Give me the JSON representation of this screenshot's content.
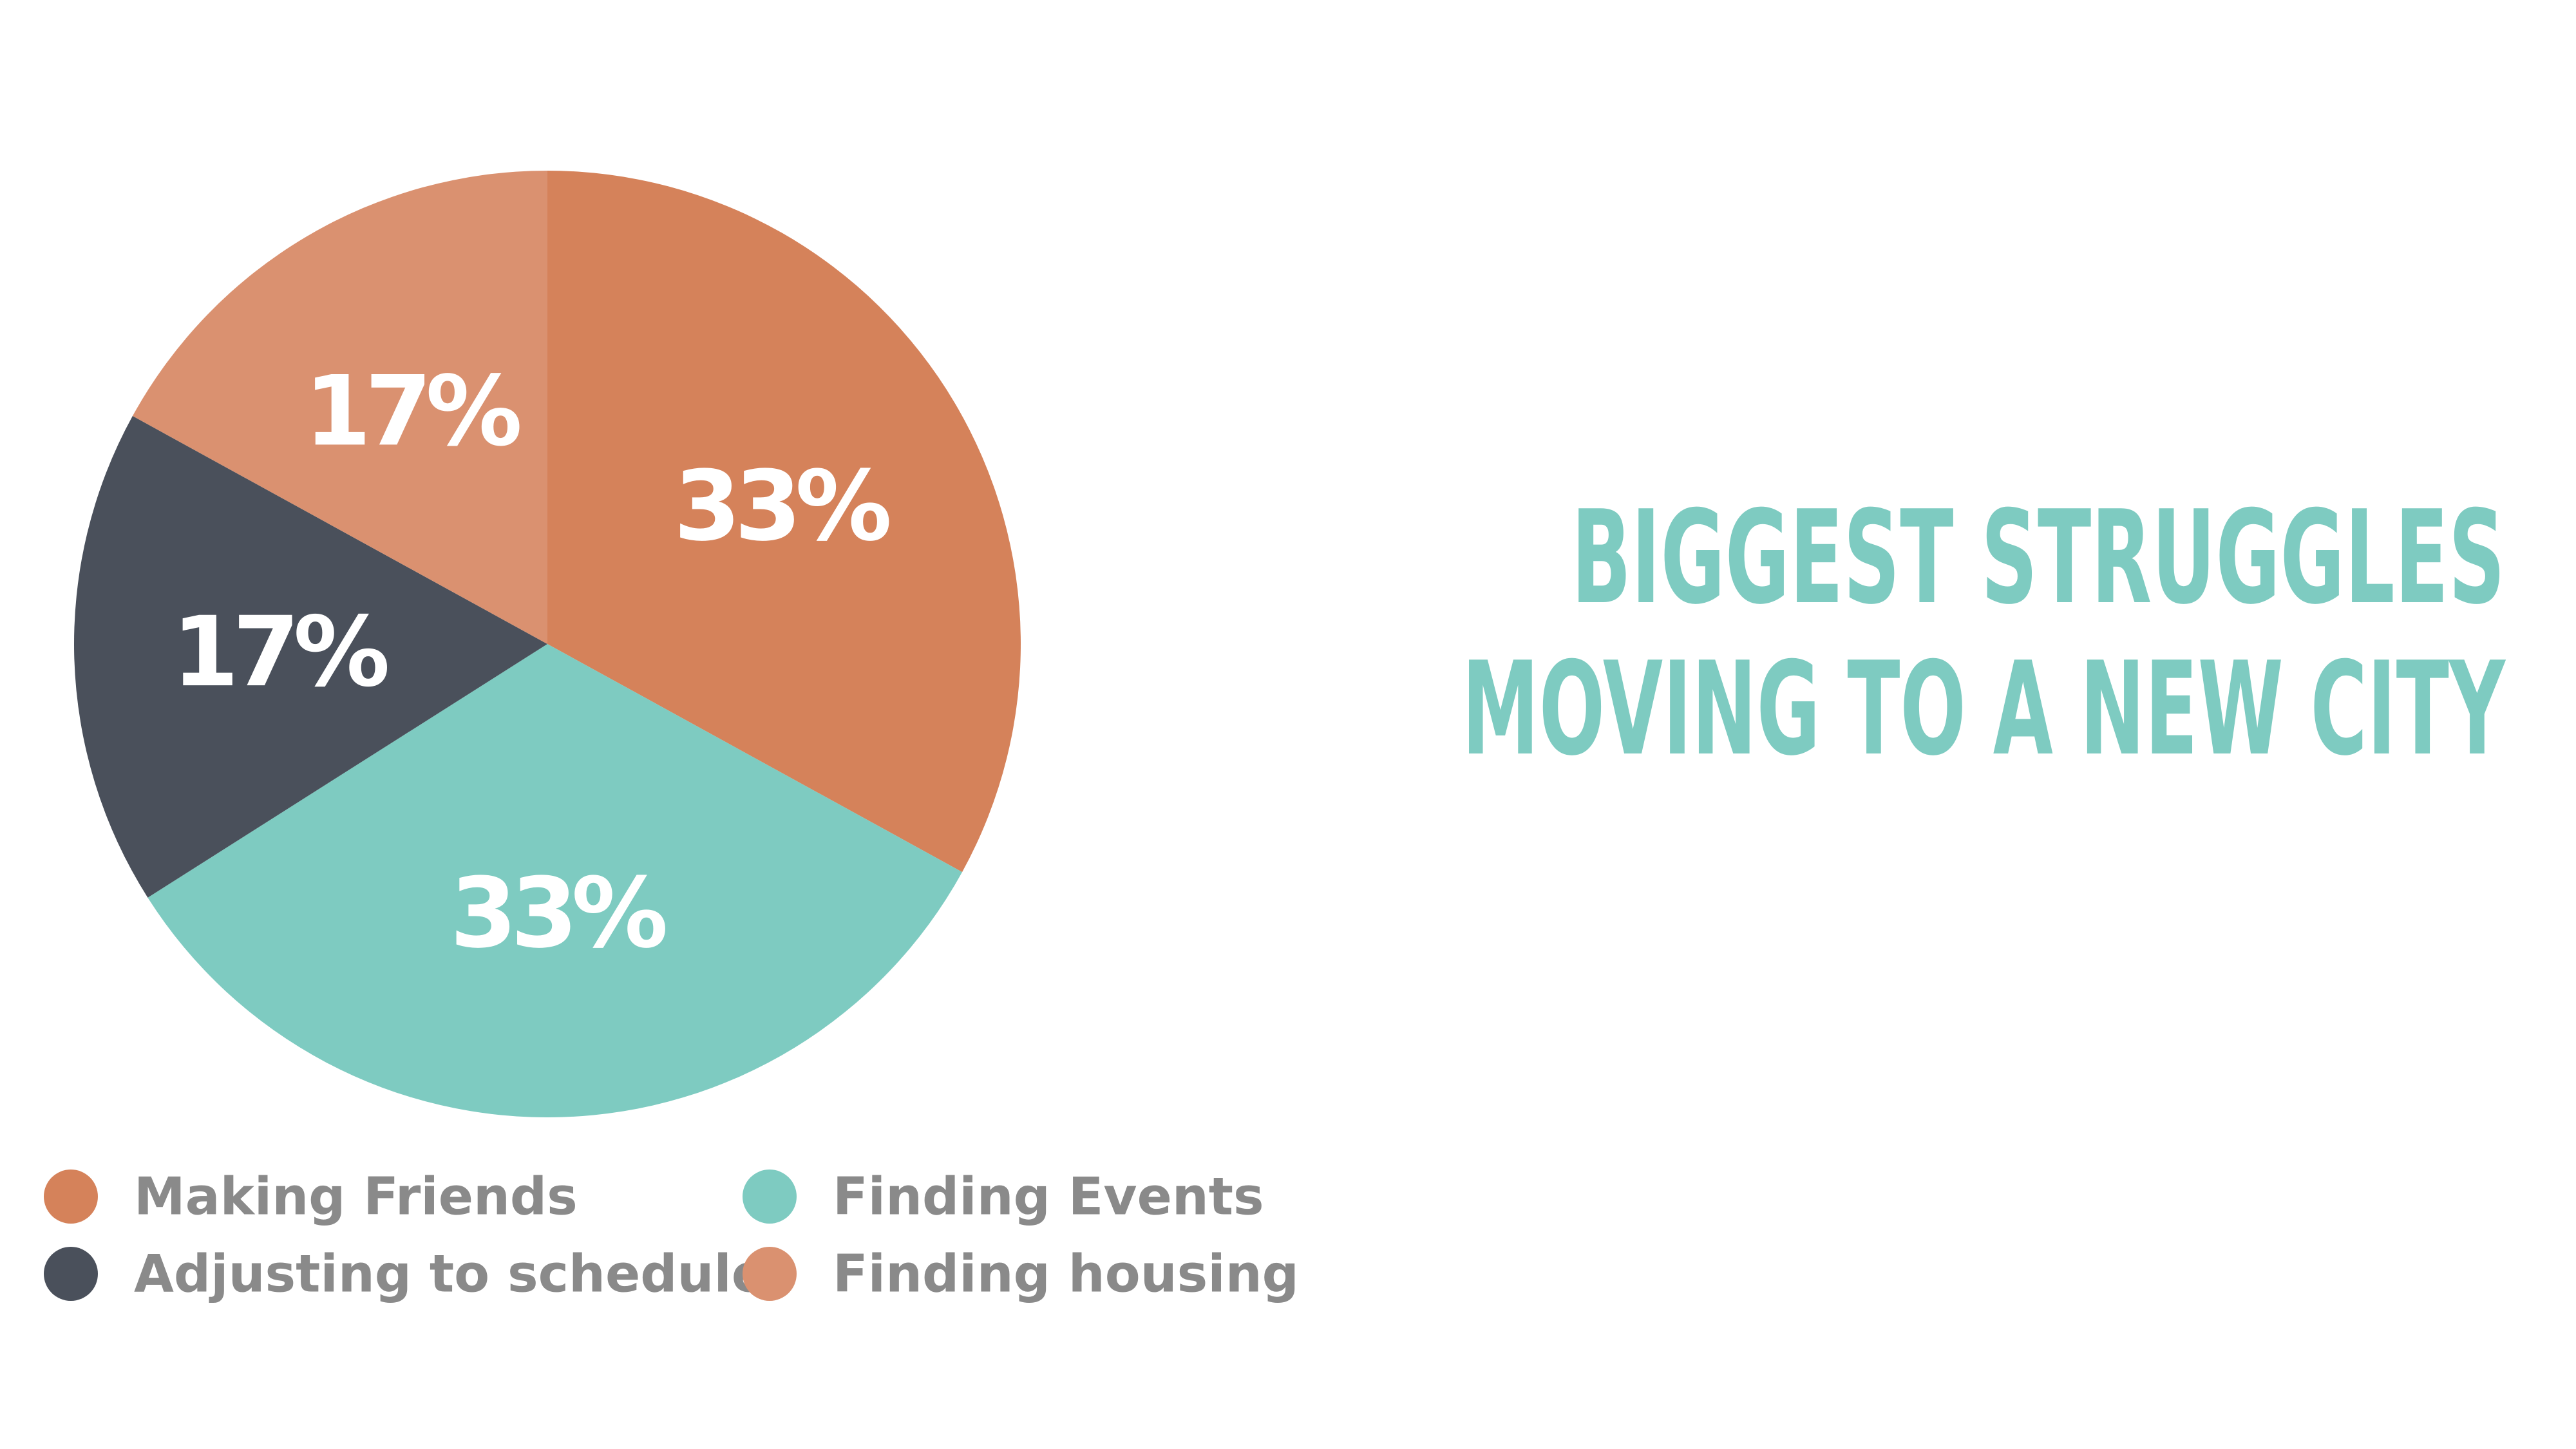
{
  "chart_data": {
    "type": "pie",
    "title_lines": [
      "BIGGEST STRUGGLES",
      "MOVING TO A NEW CITY"
    ],
    "slices": [
      {
        "name": "Making Friends",
        "value": 33,
        "label": "33%",
        "color": "#d5825a"
      },
      {
        "name": "Finding Events",
        "value": 33,
        "label": "33%",
        "color": "#7ecbc1"
      },
      {
        "name": "Adjusting to schedule",
        "value": 17,
        "label": "17%",
        "color": "#4a505b"
      },
      {
        "name": "Finding housing",
        "value": 17,
        "label": "17%",
        "color": "#da9170"
      }
    ],
    "legend_order": [
      "Making Friends",
      "Finding Events",
      "Adjusting to schedule",
      "Finding housing"
    ],
    "legend_placement": "bottom-left"
  }
}
